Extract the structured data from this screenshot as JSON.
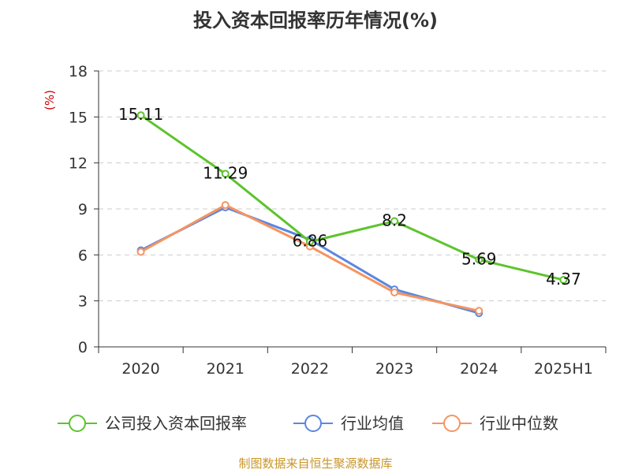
{
  "source": "制图数据来自恒生聚源数据库",
  "chart_data": {
    "type": "line",
    "title": "投入资本回报率历年情况(%)",
    "ylabel": "(%)",
    "xlabel": "",
    "ylim": [
      0,
      18
    ],
    "yticks": [
      "0",
      "3",
      "6",
      "9",
      "12",
      "15",
      "18"
    ],
    "categories": [
      "2020",
      "2021",
      "2022",
      "2023",
      "2024",
      "2025H1"
    ],
    "grid": true,
    "legend_position": "bottom",
    "series": [
      {
        "name": "公司投入资本回报率",
        "color": "#5cc42c",
        "values": [
          15.11,
          11.29,
          6.86,
          8.2,
          5.69,
          4.37
        ],
        "labels": [
          "15.11",
          "11.29",
          "6.86",
          "8.2",
          "5.69",
          "4.37"
        ]
      },
      {
        "name": "行业均值",
        "color": "#5b87e0",
        "values": [
          6.3,
          9.1,
          7.0,
          3.75,
          2.2,
          null
        ]
      },
      {
        "name": "行业中位数",
        "color": "#f59460",
        "values": [
          6.2,
          9.25,
          6.55,
          3.55,
          2.35,
          null
        ]
      }
    ]
  }
}
